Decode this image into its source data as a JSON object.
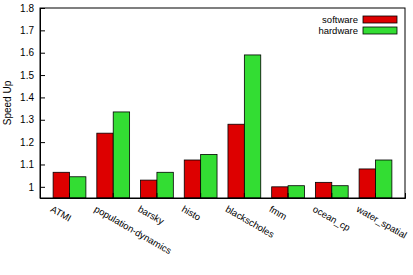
{
  "chart_data": {
    "type": "bar",
    "y_label": "Speed Up",
    "categories": [
      "ATMI",
      "population-dynamics",
      "barsky",
      "histo",
      "blackscholes",
      "fmm",
      "ocean_cp",
      "water_spatial"
    ],
    "series": [
      {
        "name": "software",
        "color": "#dd0000",
        "values": [
          1.065,
          1.24,
          1.03,
          1.12,
          1.28,
          1.0,
          1.02,
          1.08
        ]
      },
      {
        "name": "hardware",
        "color": "#33dd33",
        "values": [
          1.045,
          1.335,
          1.065,
          1.145,
          1.59,
          1.005,
          1.005,
          1.12
        ]
      }
    ],
    "ylim": [
      0.95,
      1.8
    ],
    "yticks": [
      1,
      1.1,
      1.2,
      1.3,
      1.4,
      1.5,
      1.6,
      1.7,
      1.8
    ],
    "legend": "top-right"
  }
}
